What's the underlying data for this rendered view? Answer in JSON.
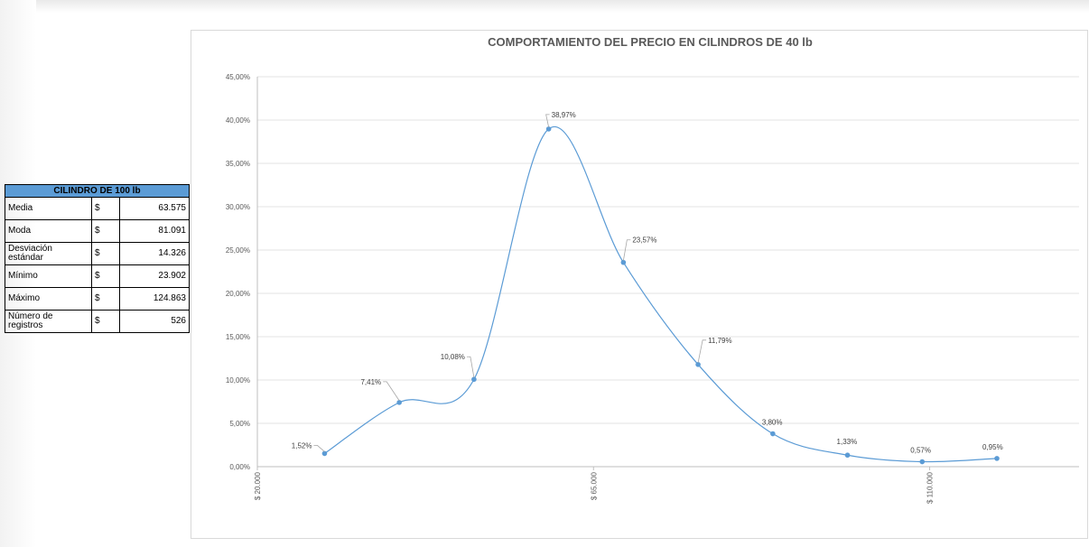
{
  "stats_table": {
    "title": "CILINDRO DE 100 lb",
    "rows": [
      {
        "label": "Media",
        "currency": "$",
        "value": "63.575"
      },
      {
        "label": "Moda",
        "currency": "$",
        "value": "81.091"
      },
      {
        "label": "Desviación estándar",
        "currency": "$",
        "value": "14.326"
      },
      {
        "label": "Mínimo",
        "currency": "$",
        "value": "23.902"
      },
      {
        "label": "Máximo",
        "currency": "$",
        "value": "124.863"
      },
      {
        "label": "Número de registros",
        "currency": "$",
        "value": "526"
      }
    ]
  },
  "chart_data": {
    "type": "line",
    "title": "COMPORTAMIENTO  DEL PRECIO EN CILINDROS DE 40 lb",
    "xlabel": "",
    "ylabel": "",
    "smooth": true,
    "markers": true,
    "grid": true,
    "line_color": "#5b9bd5",
    "xlim": [
      20000,
      130000
    ],
    "ylim": [
      0,
      45
    ],
    "x_ticks": [
      20000,
      65000,
      110000
    ],
    "x_tick_labels": [
      "$ 20.000",
      "$ 65.000",
      "$ 110.000"
    ],
    "y_ticks": [
      0,
      5,
      10,
      15,
      20,
      25,
      30,
      35,
      40,
      45
    ],
    "y_tick_labels": [
      "0,00%",
      "5,00%",
      "10,00%",
      "15,00%",
      "20,00%",
      "25,00%",
      "30,00%",
      "35,00%",
      "40,00%",
      "45,00%"
    ],
    "x": [
      29000,
      39000,
      49000,
      59000,
      69000,
      79000,
      89000,
      99000,
      109000,
      119000
    ],
    "values": [
      1.52,
      7.41,
      10.08,
      38.97,
      23.57,
      11.79,
      3.8,
      1.33,
      0.57,
      0.95
    ],
    "data_labels": [
      "1,52%",
      "7,41%",
      "10,08%",
      "38,97%",
      "23,57%",
      "11,79%",
      "3,80%",
      "1,33%",
      "0,57%",
      "0,95%"
    ]
  }
}
